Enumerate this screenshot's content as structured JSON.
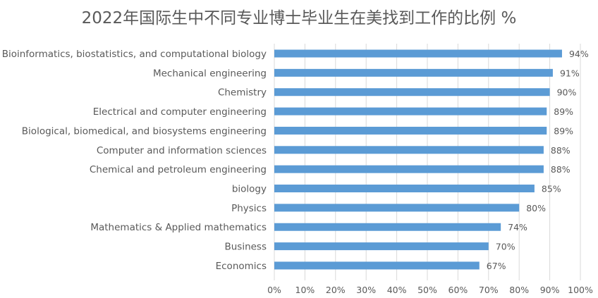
{
  "chart_data": {
    "type": "bar",
    "orientation": "horizontal",
    "title": "2022年国际生中不同专业博士毕业生在美找到工作的比例 %",
    "categories": [
      "Bioinformatics, biostatistics, and computational biology",
      "Mechanical engineering",
      "Chemistry",
      "Electrical and computer engineering",
      "Biological, biomedical, and biosystems engineering",
      "Computer and information sciences",
      "Chemical and petroleum engineering",
      "biology",
      "Physics",
      "Mathematics & Applied mathematics",
      "Business",
      "Economics"
    ],
    "values": [
      94,
      91,
      90,
      89,
      89,
      88,
      88,
      85,
      80,
      74,
      70,
      67
    ],
    "value_labels": [
      "94%",
      "91%",
      "90%",
      "89%",
      "89%",
      "88%",
      "88%",
      "85%",
      "80%",
      "74%",
      "70%",
      "67%"
    ],
    "xlim": [
      0,
      100
    ],
    "xticks": [
      "0%",
      "10%",
      "20%",
      "30%",
      "40%",
      "50%",
      "60%",
      "70%",
      "80%",
      "90%",
      "100%"
    ],
    "grid": true,
    "bar_color": "#5b9bd5"
  }
}
